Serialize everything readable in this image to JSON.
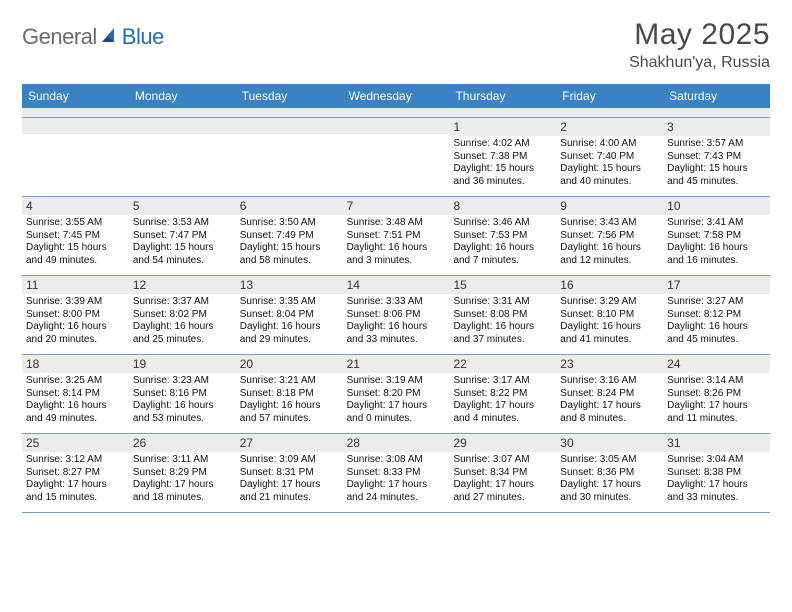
{
  "logo": {
    "general": "General",
    "blue": "Blue"
  },
  "title": "May 2025",
  "location": "Shakhun'ya, Russia",
  "colors": {
    "header_bg": "#3b82c4",
    "header_text": "#ffffff",
    "daynum_bg": "#ececec",
    "rule": "#7a9bbd",
    "logo_gray": "#6b6b6b",
    "logo_blue": "#2a6cb0"
  },
  "dow": [
    "Sunday",
    "Monday",
    "Tuesday",
    "Wednesday",
    "Thursday",
    "Friday",
    "Saturday"
  ],
  "weeks": [
    [
      {
        "n": "",
        "sr": "",
        "ss": "",
        "dl": ""
      },
      {
        "n": "",
        "sr": "",
        "ss": "",
        "dl": ""
      },
      {
        "n": "",
        "sr": "",
        "ss": "",
        "dl": ""
      },
      {
        "n": "",
        "sr": "",
        "ss": "",
        "dl": ""
      },
      {
        "n": "1",
        "sr": "4:02 AM",
        "ss": "7:38 PM",
        "dl": "15 hours and 36 minutes."
      },
      {
        "n": "2",
        "sr": "4:00 AM",
        "ss": "7:40 PM",
        "dl": "15 hours and 40 minutes."
      },
      {
        "n": "3",
        "sr": "3:57 AM",
        "ss": "7:43 PM",
        "dl": "15 hours and 45 minutes."
      }
    ],
    [
      {
        "n": "4",
        "sr": "3:55 AM",
        "ss": "7:45 PM",
        "dl": "15 hours and 49 minutes."
      },
      {
        "n": "5",
        "sr": "3:53 AM",
        "ss": "7:47 PM",
        "dl": "15 hours and 54 minutes."
      },
      {
        "n": "6",
        "sr": "3:50 AM",
        "ss": "7:49 PM",
        "dl": "15 hours and 58 minutes."
      },
      {
        "n": "7",
        "sr": "3:48 AM",
        "ss": "7:51 PM",
        "dl": "16 hours and 3 minutes."
      },
      {
        "n": "8",
        "sr": "3:46 AM",
        "ss": "7:53 PM",
        "dl": "16 hours and 7 minutes."
      },
      {
        "n": "9",
        "sr": "3:43 AM",
        "ss": "7:56 PM",
        "dl": "16 hours and 12 minutes."
      },
      {
        "n": "10",
        "sr": "3:41 AM",
        "ss": "7:58 PM",
        "dl": "16 hours and 16 minutes."
      }
    ],
    [
      {
        "n": "11",
        "sr": "3:39 AM",
        "ss": "8:00 PM",
        "dl": "16 hours and 20 minutes."
      },
      {
        "n": "12",
        "sr": "3:37 AM",
        "ss": "8:02 PM",
        "dl": "16 hours and 25 minutes."
      },
      {
        "n": "13",
        "sr": "3:35 AM",
        "ss": "8:04 PM",
        "dl": "16 hours and 29 minutes."
      },
      {
        "n": "14",
        "sr": "3:33 AM",
        "ss": "8:06 PM",
        "dl": "16 hours and 33 minutes."
      },
      {
        "n": "15",
        "sr": "3:31 AM",
        "ss": "8:08 PM",
        "dl": "16 hours and 37 minutes."
      },
      {
        "n": "16",
        "sr": "3:29 AM",
        "ss": "8:10 PM",
        "dl": "16 hours and 41 minutes."
      },
      {
        "n": "17",
        "sr": "3:27 AM",
        "ss": "8:12 PM",
        "dl": "16 hours and 45 minutes."
      }
    ],
    [
      {
        "n": "18",
        "sr": "3:25 AM",
        "ss": "8:14 PM",
        "dl": "16 hours and 49 minutes."
      },
      {
        "n": "19",
        "sr": "3:23 AM",
        "ss": "8:16 PM",
        "dl": "16 hours and 53 minutes."
      },
      {
        "n": "20",
        "sr": "3:21 AM",
        "ss": "8:18 PM",
        "dl": "16 hours and 57 minutes."
      },
      {
        "n": "21",
        "sr": "3:19 AM",
        "ss": "8:20 PM",
        "dl": "17 hours and 0 minutes."
      },
      {
        "n": "22",
        "sr": "3:17 AM",
        "ss": "8:22 PM",
        "dl": "17 hours and 4 minutes."
      },
      {
        "n": "23",
        "sr": "3:16 AM",
        "ss": "8:24 PM",
        "dl": "17 hours and 8 minutes."
      },
      {
        "n": "24",
        "sr": "3:14 AM",
        "ss": "8:26 PM",
        "dl": "17 hours and 11 minutes."
      }
    ],
    [
      {
        "n": "25",
        "sr": "3:12 AM",
        "ss": "8:27 PM",
        "dl": "17 hours and 15 minutes."
      },
      {
        "n": "26",
        "sr": "3:11 AM",
        "ss": "8:29 PM",
        "dl": "17 hours and 18 minutes."
      },
      {
        "n": "27",
        "sr": "3:09 AM",
        "ss": "8:31 PM",
        "dl": "17 hours and 21 minutes."
      },
      {
        "n": "28",
        "sr": "3:08 AM",
        "ss": "8:33 PM",
        "dl": "17 hours and 24 minutes."
      },
      {
        "n": "29",
        "sr": "3:07 AM",
        "ss": "8:34 PM",
        "dl": "17 hours and 27 minutes."
      },
      {
        "n": "30",
        "sr": "3:05 AM",
        "ss": "8:36 PM",
        "dl": "17 hours and 30 minutes."
      },
      {
        "n": "31",
        "sr": "3:04 AM",
        "ss": "8:38 PM",
        "dl": "17 hours and 33 minutes."
      }
    ]
  ],
  "labels": {
    "sunrise": "Sunrise:",
    "sunset": "Sunset:",
    "daylight": "Daylight:"
  }
}
